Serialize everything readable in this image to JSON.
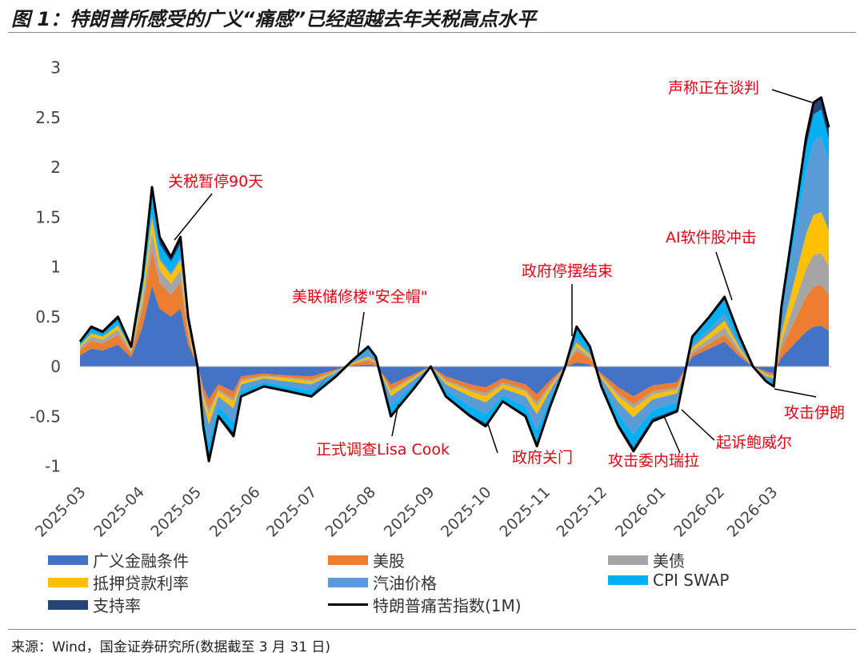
{
  "title": "图 1：特朗普所感受的广义“痛感”已经超越去年关税高点水平",
  "source": "来源：Wind，国金证券研究所(数据截至 3 月 31 日)",
  "chart_data": {
    "type": "area",
    "stacked": true,
    "title": "",
    "xlabel": "",
    "ylabel": "",
    "ylim": [
      -1,
      3
    ],
    "yticks": [
      "3",
      "2.5",
      "2",
      "1.5",
      "1",
      "0.5",
      "0",
      "-0.5",
      "-1"
    ],
    "xticks": [
      "2025-03",
      "2025-04",
      "2025-05",
      "2025-06",
      "2025-07",
      "2025-08",
      "2025-09",
      "2025-10",
      "2025-11",
      "2025-12",
      "2026-01",
      "2026-02",
      "2026-03"
    ],
    "xlim": [
      "2025-03-01",
      "2026-03-31"
    ],
    "grid": false,
    "legend_position": "bottom",
    "dates": [
      "2025-03-01",
      "2025-03-07",
      "2025-03-13",
      "2025-03-21",
      "2025-03-28",
      "2025-04-03",
      "2025-04-08",
      "2025-04-12",
      "2025-04-18",
      "2025-04-23",
      "2025-04-27",
      "2025-05-02",
      "2025-05-05",
      "2025-05-08",
      "2025-05-13",
      "2025-05-21",
      "2025-05-25",
      "2025-06-06",
      "2025-06-19",
      "2025-07-01",
      "2025-07-14",
      "2025-07-22",
      "2025-07-31",
      "2025-08-04",
      "2025-08-12",
      "2025-08-25",
      "2025-09-02",
      "2025-09-10",
      "2025-09-23",
      "2025-10-01",
      "2025-10-10",
      "2025-10-22",
      "2025-10-28",
      "2025-11-04",
      "2025-11-12",
      "2025-11-18",
      "2025-11-25",
      "2025-12-01",
      "2025-12-10",
      "2025-12-18",
      "2025-12-28",
      "2026-01-10",
      "2026-01-18",
      "2026-01-27",
      "2026-02-04",
      "2026-02-12",
      "2026-02-19",
      "2026-02-26",
      "2026-03-02",
      "2026-03-06",
      "2026-03-13",
      "2026-03-19",
      "2026-03-23",
      "2026-03-27",
      "2026-03-31"
    ],
    "series": [
      {
        "name": "广义金融条件",
        "color": "#4472c4",
        "values": [
          0.11,
          0.18,
          0.16,
          0.22,
          0.09,
          0.4,
          0.81,
          0.58,
          0.5,
          0.58,
          0.22,
          0.02,
          -0.21,
          -0.33,
          -0.18,
          -0.25,
          -0.1,
          -0.07,
          -0.09,
          -0.1,
          -0.03,
          0.01,
          0.02,
          0.01,
          -0.18,
          -0.07,
          0,
          -0.1,
          -0.18,
          -0.21,
          -0.12,
          -0.18,
          -0.28,
          -0.14,
          0,
          0.04,
          0.02,
          -0.07,
          -0.21,
          -0.3,
          -0.19,
          -0.16,
          0.1,
          0.18,
          0.25,
          0.1,
          0,
          -0.05,
          -0.07,
          0.09,
          0.23,
          0.35,
          0.4,
          0.41,
          0.36
        ]
      },
      {
        "name": "美股",
        "color": "#ed7d31",
        "values": [
          0.05,
          0.08,
          0.07,
          0.1,
          0.04,
          0.18,
          0.36,
          0.26,
          0.22,
          0.26,
          0.1,
          -0.02,
          -0.06,
          -0.1,
          -0.05,
          -0.07,
          -0.03,
          -0.02,
          -0.02,
          -0.03,
          -0.01,
          0.01,
          0.04,
          0.02,
          -0.05,
          -0.02,
          0,
          -0.03,
          -0.05,
          -0.06,
          -0.04,
          -0.05,
          -0.08,
          -0.04,
          0,
          0.12,
          0.06,
          -0.02,
          -0.06,
          -0.08,
          -0.06,
          -0.05,
          0.03,
          0.05,
          0.07,
          0.03,
          0,
          -0.02,
          -0.02,
          0.09,
          0.23,
          0.35,
          0.4,
          0.41,
          0.36
        ]
      },
      {
        "name": "美债",
        "color": "#a5a5a5",
        "values": [
          0.03,
          0.04,
          0.04,
          0.05,
          0.02,
          0.09,
          0.18,
          0.13,
          0.11,
          0.13,
          0.05,
          0,
          -0.03,
          -0.05,
          -0.02,
          -0.03,
          -0.02,
          -0.01,
          -0.01,
          -0.02,
          -0.01,
          0,
          0.02,
          0.01,
          -0.02,
          -0.01,
          0,
          -0.02,
          -0.02,
          -0.03,
          -0.02,
          -0.02,
          -0.04,
          -0.02,
          0,
          0.04,
          0.02,
          -0.01,
          -0.03,
          -0.04,
          -0.03,
          -0.02,
          0.03,
          0.05,
          0.07,
          0.03,
          0,
          -0.01,
          -0.01,
          0.07,
          0.18,
          0.28,
          0.32,
          0.32,
          0.29
        ]
      },
      {
        "name": "抵押贷款利率",
        "color": "#ffc000",
        "values": [
          0.02,
          0.03,
          0.03,
          0.04,
          0.02,
          0.07,
          0.14,
          0.1,
          0.09,
          0.1,
          0.04,
          0,
          -0.06,
          -0.1,
          -0.05,
          -0.07,
          -0.03,
          -0.02,
          -0.03,
          -0.03,
          -0.01,
          0.01,
          0.02,
          0.01,
          -0.05,
          -0.02,
          0,
          -0.03,
          -0.05,
          -0.06,
          -0.04,
          -0.05,
          -0.08,
          -0.04,
          0,
          0.04,
          0.02,
          -0.02,
          -0.06,
          -0.09,
          -0.05,
          -0.04,
          0.03,
          0.05,
          0.07,
          0.03,
          0,
          -0.02,
          -0.02,
          0.09,
          0.23,
          0.35,
          0.4,
          0.41,
          0.36
        ]
      },
      {
        "name": "汽油价格",
        "color": "#5b9bd5",
        "values": [
          0,
          0.01,
          0,
          0.01,
          0,
          0.02,
          0.04,
          0.03,
          0.02,
          0.03,
          0.01,
          0,
          -0.12,
          -0.19,
          -0.1,
          -0.14,
          -0.06,
          -0.04,
          -0.05,
          -0.06,
          -0.02,
          0.01,
          0.06,
          0.03,
          -0.1,
          -0.04,
          0,
          -0.06,
          -0.1,
          -0.12,
          -0.07,
          -0.1,
          -0.16,
          -0.08,
          0,
          0.04,
          0.02,
          -0.04,
          -0.12,
          -0.17,
          -0.11,
          -0.09,
          0.03,
          0.05,
          0.07,
          0.03,
          0,
          -0.03,
          -0.04,
          0.17,
          0.42,
          0.64,
          0.74,
          0.76,
          0.67
        ]
      },
      {
        "name": "CPI SWAP",
        "color": "#00b0f0",
        "values": [
          0.03,
          0.04,
          0.03,
          0.05,
          0.02,
          0.09,
          0.18,
          0.13,
          0.11,
          0.13,
          0.05,
          0,
          -0.09,
          -0.14,
          -0.08,
          -0.1,
          -0.05,
          -0.03,
          -0.04,
          -0.05,
          -0.02,
          0.01,
          0.03,
          0.02,
          -0.08,
          -0.03,
          0,
          -0.05,
          -0.08,
          -0.09,
          -0.05,
          -0.08,
          -0.12,
          -0.06,
          0,
          0.1,
          0.05,
          -0.03,
          -0.09,
          -0.13,
          -0.08,
          -0.07,
          0.06,
          0.1,
          0.14,
          0.06,
          0,
          -0.02,
          -0.03,
          0.06,
          0.15,
          0.23,
          0.27,
          0.27,
          0.24
        ]
      },
      {
        "name": "支持率",
        "color": "#264478",
        "values": [
          0.01,
          0.02,
          0.02,
          0.03,
          0.01,
          0.05,
          0.09,
          0.07,
          0.05,
          0.07,
          0.03,
          0,
          -0.03,
          -0.04,
          -0.02,
          -0.04,
          -0.01,
          -0.01,
          -0.01,
          -0.01,
          0,
          0,
          0.01,
          0,
          -0.02,
          -0.01,
          0,
          -0.01,
          -0.02,
          -0.03,
          -0.01,
          -0.02,
          -0.04,
          -0.02,
          0,
          0.02,
          0.01,
          -0.01,
          -0.03,
          -0.04,
          -0.03,
          -0.02,
          0.02,
          0.02,
          0.03,
          0.02,
          0,
          0,
          -0.01,
          0.03,
          0.06,
          0.1,
          0.12,
          0.12,
          0.12
        ]
      }
    ],
    "line": {
      "name": "特朗普痛苦指数(1M)",
      "color": "#000000",
      "values": [
        0.25,
        0.4,
        0.35,
        0.5,
        0.2,
        0.9,
        1.8,
        1.3,
        1.1,
        1.3,
        0.5,
        0,
        -0.6,
        -0.95,
        -0.5,
        -0.7,
        -0.3,
        -0.2,
        -0.25,
        -0.3,
        -0.1,
        0.05,
        0.2,
        0.1,
        -0.5,
        -0.2,
        0,
        -0.3,
        -0.5,
        -0.6,
        -0.35,
        -0.5,
        -0.8,
        -0.4,
        0,
        0.4,
        0.2,
        -0.2,
        -0.6,
        -0.85,
        -0.55,
        -0.45,
        0.3,
        0.5,
        0.7,
        0.3,
        0,
        -0.15,
        -0.2,
        0.6,
        1.5,
        2.3,
        2.65,
        2.7,
        2.4
      ]
    },
    "annotations": [
      {
        "text": "关税暂停90天",
        "date": "2025-04-10",
        "value": 1.3
      },
      {
        "text": "美联储修楼\"安全帽\"",
        "date": "2025-07-24",
        "value": 0.1
      },
      {
        "text": "正式调查Lisa Cook",
        "date": "2025-08-15",
        "value": -0.4
      },
      {
        "text": "政府关门",
        "date": "2025-10-01",
        "value": -0.6
      },
      {
        "text": "政府停摆结束",
        "date": "2025-11-12",
        "value": 0
      },
      {
        "text": "攻击委内瑞拉",
        "date": "2026-01-03",
        "value": -0.5
      },
      {
        "text": "起诉鲍威尔",
        "date": "2026-01-12",
        "value": -0.45
      },
      {
        "text": "AI软件股冲击",
        "date": "2026-02-04",
        "value": 0.7
      },
      {
        "text": "声称正在谈判",
        "date": "2026-03-23",
        "value": 2.65
      },
      {
        "text": "攻击伊朗",
        "date": "2026-02-28",
        "value": -0.2
      }
    ],
    "annotation_color": "#e60012"
  }
}
